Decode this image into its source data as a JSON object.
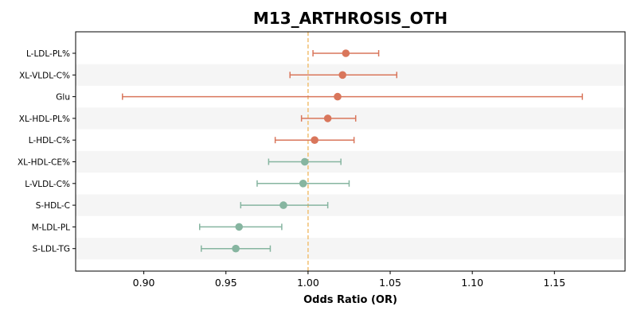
{
  "chart_data": {
    "type": "forest",
    "title": "M13_ARTHROSIS_OTH",
    "xlabel": "Odds Ratio (OR)",
    "xlim": [
      0.8585,
      1.193
    ],
    "xticks": [
      0.9,
      0.95,
      1.0,
      1.05,
      1.1,
      1.15
    ],
    "xtick_labels": [
      "0.90",
      "0.95",
      "1.00",
      "1.05",
      "1.10",
      "1.15"
    ],
    "reference_line": 1.0,
    "colors": {
      "positive": "#d9765b",
      "negative": "#86b5a0",
      "reference": "#f2c37a",
      "band": "#f5f5f5"
    },
    "rows": [
      {
        "label": "L-LDL-PL%",
        "or": 1.023,
        "lo": 1.003,
        "hi": 1.043
      },
      {
        "label": "XL-VLDL-C%",
        "or": 1.021,
        "lo": 0.989,
        "hi": 1.054
      },
      {
        "label": "Glu",
        "or": 1.018,
        "lo": 0.887,
        "hi": 1.167
      },
      {
        "label": "XL-HDL-PL%",
        "or": 1.012,
        "lo": 0.996,
        "hi": 1.029
      },
      {
        "label": "L-HDL-C%",
        "or": 1.004,
        "lo": 0.98,
        "hi": 1.028
      },
      {
        "label": "XL-HDL-CE%",
        "or": 0.998,
        "lo": 0.976,
        "hi": 1.02
      },
      {
        "label": "L-VLDL-C%",
        "or": 0.997,
        "lo": 0.969,
        "hi": 1.025
      },
      {
        "label": "S-HDL-C",
        "or": 0.985,
        "lo": 0.959,
        "hi": 1.012
      },
      {
        "label": "M-LDL-PL",
        "or": 0.958,
        "lo": 0.934,
        "hi": 0.984
      },
      {
        "label": "S-LDL-TG",
        "or": 0.956,
        "lo": 0.935,
        "hi": 0.977
      }
    ]
  }
}
